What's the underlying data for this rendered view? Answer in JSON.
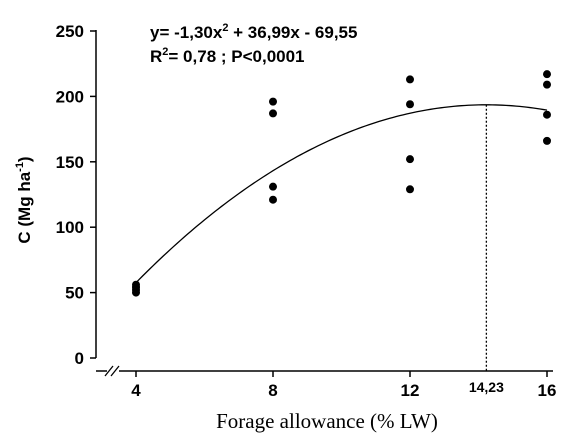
{
  "chart_data": {
    "type": "scatter",
    "x": [
      4,
      8,
      12,
      16
    ],
    "xlabel": "Forage allowance (% LW)",
    "ylabel": "C (Mg ha",
    "ylabel_sup": "-1",
    "ylabel_close": ")",
    "ylim": [
      0,
      250
    ],
    "xticks": [
      "4",
      "8",
      "12",
      "16"
    ],
    "yticks": [
      "0",
      "50",
      "100",
      "150",
      "200",
      "250"
    ],
    "grid": false,
    "axis_break": true,
    "points": [
      {
        "x": 4,
        "y": 56
      },
      {
        "x": 4,
        "y": 54
      },
      {
        "x": 4,
        "y": 52
      },
      {
        "x": 4,
        "y": 50
      },
      {
        "x": 8,
        "y": 196
      },
      {
        "x": 8,
        "y": 187
      },
      {
        "x": 8,
        "y": 131
      },
      {
        "x": 8,
        "y": 121
      },
      {
        "x": 12,
        "y": 213
      },
      {
        "x": 12,
        "y": 194
      },
      {
        "x": 12,
        "y": 152
      },
      {
        "x": 12,
        "y": 129
      },
      {
        "x": 16,
        "y": 217
      },
      {
        "x": 16,
        "y": 209
      },
      {
        "x": 16,
        "y": 186
      },
      {
        "x": 16,
        "y": 166
      }
    ],
    "fit": {
      "a": -1.3,
      "b": 36.99,
      "c": -69.55,
      "x_range": [
        4,
        16
      ],
      "equation_main": "y= -1,30x",
      "equation_sup": "2",
      "equation_rest": " + 36,99x - 69,55",
      "r2_prefix": "R",
      "r2_sup": "2",
      "r2_rest": "= 0,78 ; P<0,0001"
    },
    "optimum": {
      "x": 14.23,
      "label": "14,23"
    }
  }
}
